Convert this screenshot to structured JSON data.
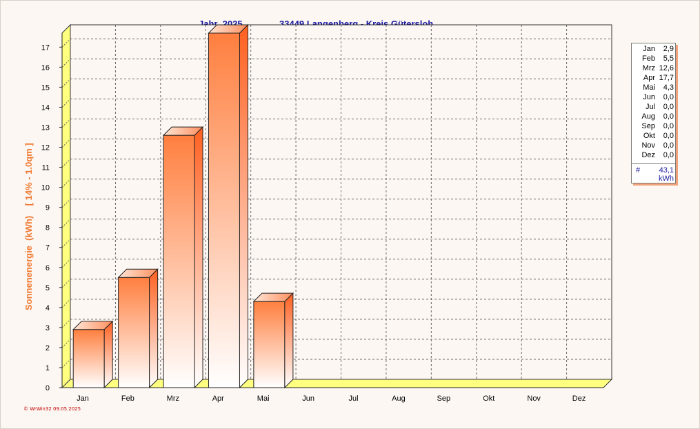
{
  "header": {
    "year_label": "Jahr  2025",
    "location": "33449 Langenberg - Kreis Gütersloh"
  },
  "footer": {
    "text": "© WrWin32  09.05.2025"
  },
  "legend": {
    "rows": [
      {
        "month": "Jan",
        "value": "2,9"
      },
      {
        "month": "Feb",
        "value": "5,5"
      },
      {
        "month": "Mrz",
        "value": "12,6"
      },
      {
        "month": "Apr",
        "value": "17,7"
      },
      {
        "month": "Mai",
        "value": "4,3"
      },
      {
        "month": "Jun",
        "value": "0,0"
      },
      {
        "month": "Jul",
        "value": "0,0"
      },
      {
        "month": "Aug",
        "value": "0,0"
      },
      {
        "month": "Sep",
        "value": "0,0"
      },
      {
        "month": "Okt",
        "value": "0,0"
      },
      {
        "month": "Nov",
        "value": "0,0"
      },
      {
        "month": "Dez",
        "value": "0,0"
      }
    ],
    "total_symbol": "#",
    "total_value": "43,1",
    "total_unit": "kWh"
  },
  "colors": {
    "bar_top": "#FF7F3F",
    "bar_bottom": "#FFFFFF",
    "wall": "#FFFF80",
    "title": "#1a1aa0",
    "ylabel": "#F07830"
  },
  "chart_data": {
    "type": "bar",
    "title": "33449 Langenberg - Kreis Gütersloh",
    "categories": [
      "Jan",
      "Feb",
      "Mrz",
      "Apr",
      "Mai",
      "Jun",
      "Jul",
      "Aug",
      "Sep",
      "Okt",
      "Nov",
      "Dez"
    ],
    "values": [
      2.9,
      5.5,
      12.6,
      17.7,
      4.3,
      0,
      0,
      0,
      0,
      0,
      0,
      0
    ],
    "xlabel": "",
    "ylabel": "Sonnenenergie  (kWh)    [ 14% - 1.0qm ]",
    "ylim": [
      0,
      17.7
    ],
    "yticks": [
      0,
      1,
      2,
      3,
      4,
      5,
      6,
      7,
      8,
      9,
      10,
      11,
      12,
      13,
      14,
      15,
      16,
      17
    ],
    "grid": true,
    "legend_position": "right"
  }
}
